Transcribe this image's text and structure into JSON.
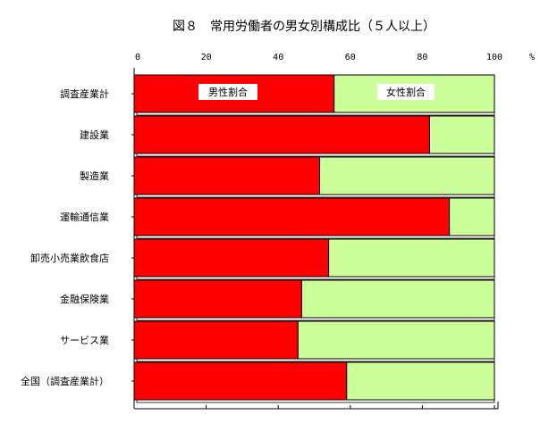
{
  "chart_data": {
    "type": "bar",
    "orientation": "horizontal",
    "stacked": true,
    "percent_stacked": true,
    "title": "図８　常用労働者の男女別構成比（５人以上）",
    "x_unit": "%",
    "xlim": [
      0,
      100
    ],
    "x_ticks": [
      "0",
      "20",
      "40",
      "60",
      "80",
      "100"
    ],
    "grid": false,
    "categories": [
      "調査産業計",
      "建設業",
      "製造業",
      "運輸通信業",
      "卸売小売業飲食店",
      "金融保険業",
      "サービス業",
      "全国（調査産業計）"
    ],
    "series": [
      {
        "name": "男性割合",
        "color": "#ff0000",
        "values": [
          55.5,
          82.0,
          51.5,
          87.5,
          54.0,
          46.5,
          45.5,
          59.0
        ]
      },
      {
        "name": "女性割合",
        "color": "#ccff99",
        "values": [
          44.5,
          18.0,
          48.5,
          12.5,
          46.0,
          53.5,
          54.5,
          41.0
        ]
      }
    ]
  }
}
